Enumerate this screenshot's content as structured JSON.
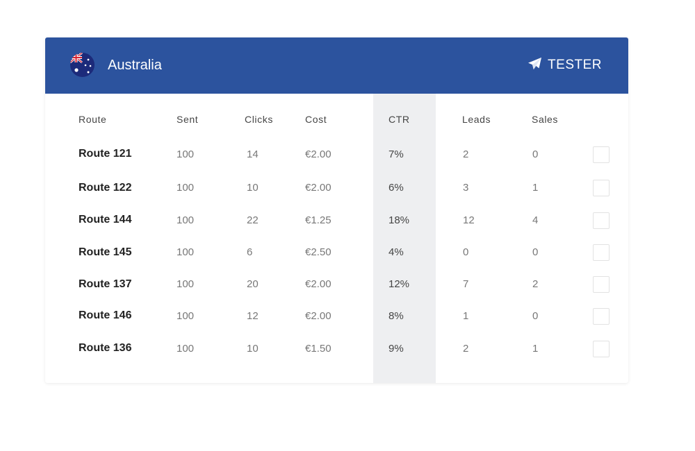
{
  "header": {
    "country": "Australia",
    "tester_label": "TESTER",
    "bg_color": "#2c539e"
  },
  "icons": {
    "flag": "australia-flag-icon",
    "tester": "paper-plane-icon"
  },
  "table": {
    "columns": [
      "Route",
      "Sent",
      "Clicks",
      "Cost",
      "CTR",
      "Leads",
      "Sales"
    ],
    "rows": [
      {
        "route": "Route 121",
        "sent": "100",
        "clicks": "14",
        "cost": "€2.00",
        "ctr": "7%",
        "leads": "2",
        "sales": "0"
      },
      {
        "route": "Route 122",
        "sent": "100",
        "clicks": "10",
        "cost": "€2.00",
        "ctr": "6%",
        "leads": "3",
        "sales": "1"
      },
      {
        "route": "Route 144",
        "sent": "100",
        "clicks": "22",
        "cost": "€1.25",
        "ctr": "18%",
        "leads": "12",
        "sales": "4"
      },
      {
        "route": "Route 145",
        "sent": "100",
        "clicks": "6",
        "cost": "€2.50",
        "ctr": "4%",
        "leads": "0",
        "sales": "0"
      },
      {
        "route": "Route 137",
        "sent": "100",
        "clicks": "20",
        "cost": "€2.00",
        "ctr": "12%",
        "leads": "7",
        "sales": "2"
      },
      {
        "route": "Route 146",
        "sent": "100",
        "clicks": "12",
        "cost": "€2.00",
        "ctr": "8%",
        "leads": "1",
        "sales": "0"
      },
      {
        "route": "Route 136",
        "sent": "100",
        "clicks": "10",
        "cost": "€1.50",
        "ctr": "9%",
        "leads": "2",
        "sales": "1"
      }
    ]
  }
}
